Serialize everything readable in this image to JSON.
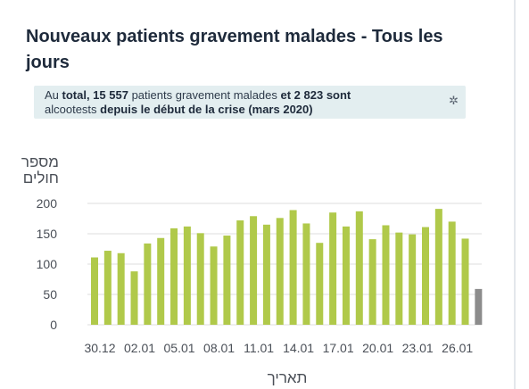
{
  "title": "Nouveaux patients gravement malades - Tous les jours",
  "info": {
    "p1": "Au ",
    "p2": "total, 15 557",
    "p3": " patients gravement malades ",
    "p4": "et 2 823 sont",
    "p5": "alcootests ",
    "p6": "depuis le début de la crise (mars 2020)",
    "icon": "star-icon"
  },
  "colors": {
    "bar": "#b0c94a",
    "bar_partial": "#8c8c8c",
    "grid": "#dcdcdc",
    "title": "#1e2a3b",
    "info_bg": "#e3eef0"
  },
  "chart_data": {
    "type": "bar",
    "ylabel_lines": [
      "מספר",
      "חולים"
    ],
    "xlabel": "תאריך",
    "ylim": [
      0,
      200
    ],
    "yticks": [
      0,
      50,
      100,
      150,
      200
    ],
    "grid": true,
    "categories": [
      "30.12",
      "31.12",
      "01.01",
      "02.01",
      "03.01",
      "04.01",
      "05.01",
      "06.01",
      "07.01",
      "08.01",
      "09.01",
      "10.01",
      "11.01",
      "12.01",
      "13.01",
      "14.01",
      "15.01",
      "16.01",
      "17.01",
      "18.01",
      "19.01",
      "20.01",
      "21.01",
      "22.01",
      "23.01",
      "24.01",
      "25.01",
      "26.01",
      "27.01",
      "28.01"
    ],
    "xtick_labels": [
      "30.12",
      "02.01",
      "05.01",
      "08.01",
      "11.01",
      "14.01",
      "17.01",
      "20.01",
      "23.01",
      "26.01"
    ],
    "values": [
      111,
      122,
      118,
      88,
      134,
      143,
      159,
      162,
      151,
      129,
      147,
      172,
      179,
      165,
      176,
      189,
      167,
      135,
      185,
      162,
      187,
      141,
      164,
      152,
      149,
      161,
      191,
      170,
      142,
      59
    ],
    "partial_last_day": true
  }
}
